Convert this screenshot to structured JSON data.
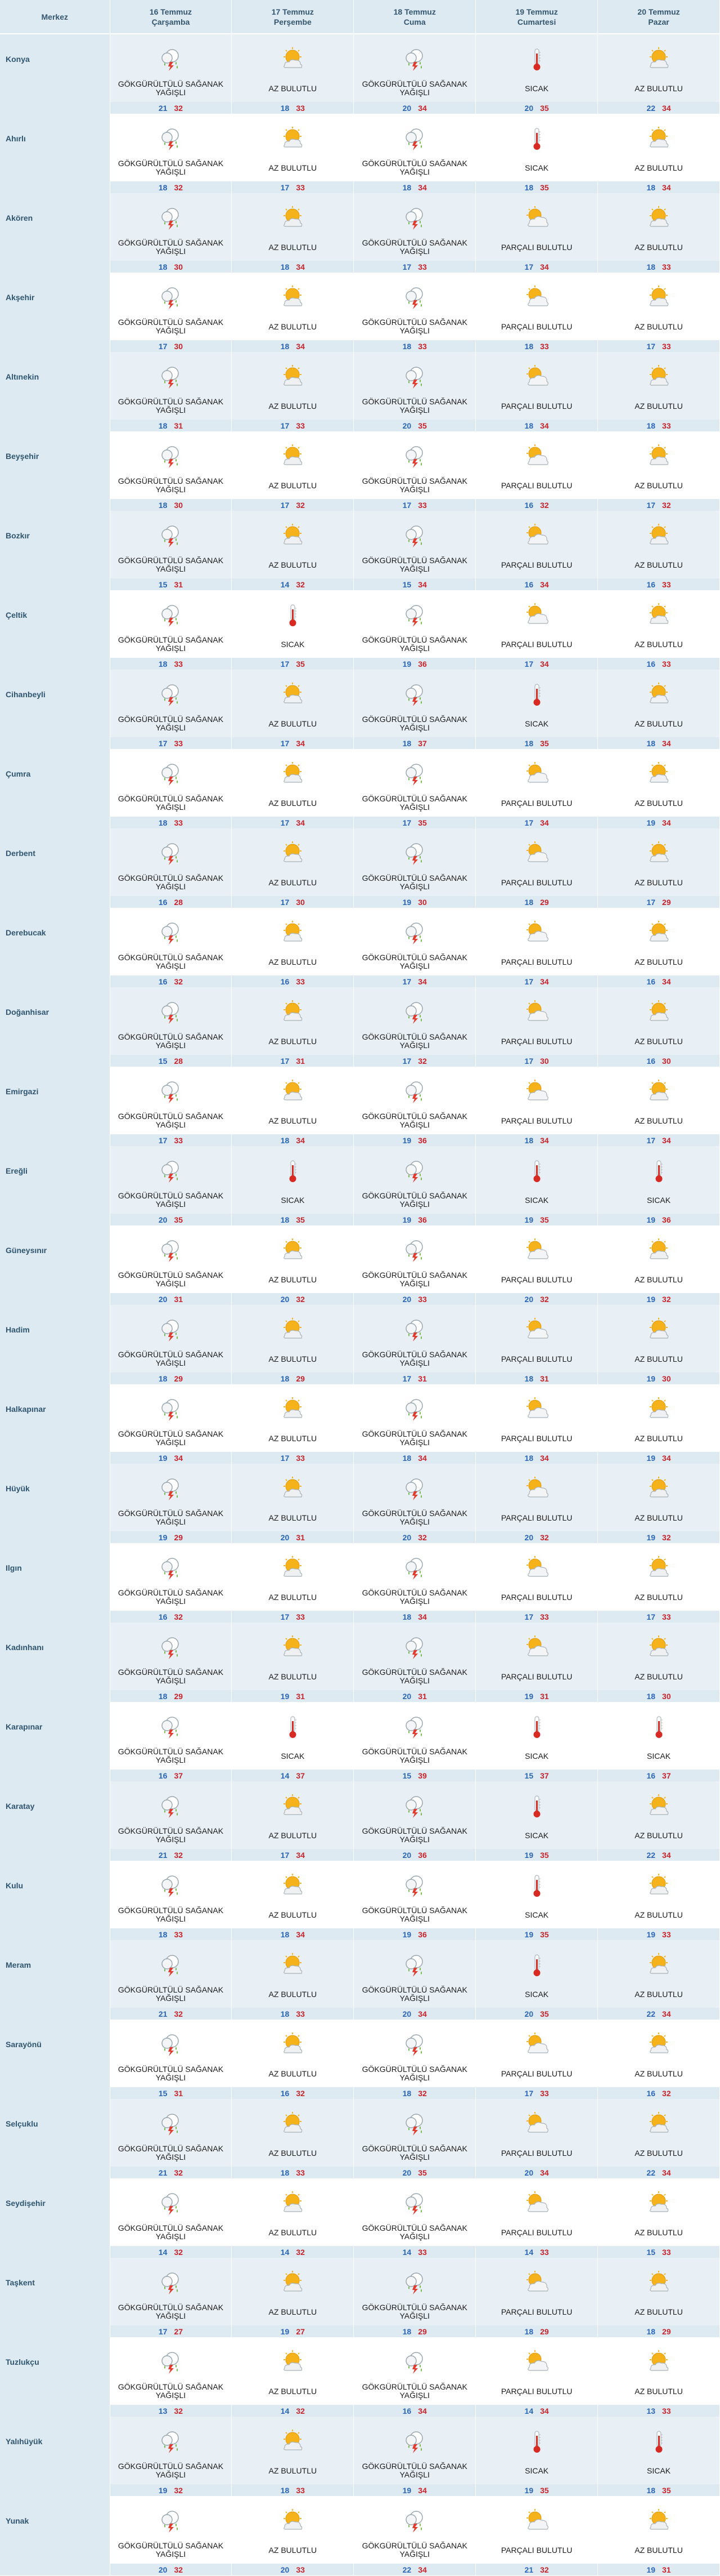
{
  "header": {
    "city_label": "Merkez",
    "days": [
      {
        "date": "16 Temmuz",
        "day": "Çarşamba"
      },
      {
        "date": "17 Temmuz",
        "day": "Perşembe"
      },
      {
        "date": "18 Temmuz",
        "day": "Cuma"
      },
      {
        "date": "19 Temmuz",
        "day": "Cumartesi"
      },
      {
        "date": "20 Temmuz",
        "day": "Pazar"
      }
    ]
  },
  "conditions": {
    "storm": "GÖKGÜRÜLTÜLÜ SAĞANAK YAĞIŞLI",
    "partly": "AZ BULUTLU",
    "mostly": "PARÇALI BULUTLU",
    "hot": "SICAK"
  },
  "icons": {
    "storm": "thunderstorm-icon",
    "partly": "partly-cloudy-icon",
    "mostly": "mostly-cloudy-icon",
    "hot": "thermometer-icon"
  },
  "colors": {
    "header_bg": "#ddeaf2",
    "city_text": "#2f5570",
    "min_temp": "#2a66b8",
    "max_temp": "#c8232a",
    "alt_row": "#e9f0f5"
  },
  "rows": [
    {
      "city": "Konya",
      "days": [
        [
          "storm",
          21,
          32
        ],
        [
          "partly",
          18,
          33
        ],
        [
          "storm",
          20,
          34
        ],
        [
          "hot",
          20,
          35
        ],
        [
          "partly",
          22,
          34
        ]
      ]
    },
    {
      "city": "Ahırlı",
      "days": [
        [
          "storm",
          18,
          32
        ],
        [
          "partly",
          17,
          33
        ],
        [
          "storm",
          18,
          34
        ],
        [
          "hot",
          18,
          35
        ],
        [
          "partly",
          18,
          34
        ]
      ]
    },
    {
      "city": "Akören",
      "days": [
        [
          "storm",
          18,
          30
        ],
        [
          "partly",
          18,
          34
        ],
        [
          "storm",
          17,
          33
        ],
        [
          "mostly",
          17,
          34
        ],
        [
          "partly",
          18,
          33
        ]
      ]
    },
    {
      "city": "Akşehir",
      "days": [
        [
          "storm",
          17,
          30
        ],
        [
          "partly",
          18,
          34
        ],
        [
          "storm",
          18,
          33
        ],
        [
          "mostly",
          18,
          33
        ],
        [
          "partly",
          17,
          33
        ]
      ]
    },
    {
      "city": "Altınekin",
      "days": [
        [
          "storm",
          18,
          31
        ],
        [
          "partly",
          17,
          33
        ],
        [
          "storm",
          20,
          35
        ],
        [
          "mostly",
          18,
          34
        ],
        [
          "partly",
          18,
          33
        ]
      ]
    },
    {
      "city": "Beyşehir",
      "days": [
        [
          "storm",
          18,
          30
        ],
        [
          "partly",
          17,
          32
        ],
        [
          "storm",
          17,
          33
        ],
        [
          "mostly",
          16,
          32
        ],
        [
          "partly",
          17,
          32
        ]
      ]
    },
    {
      "city": "Bozkır",
      "days": [
        [
          "storm",
          15,
          31
        ],
        [
          "partly",
          14,
          32
        ],
        [
          "storm",
          15,
          34
        ],
        [
          "mostly",
          16,
          34
        ],
        [
          "partly",
          16,
          33
        ]
      ]
    },
    {
      "city": "Çeltik",
      "days": [
        [
          "storm",
          18,
          33
        ],
        [
          "hot",
          17,
          35
        ],
        [
          "storm",
          19,
          36
        ],
        [
          "mostly",
          17,
          34
        ],
        [
          "partly",
          16,
          33
        ]
      ]
    },
    {
      "city": "Cihanbeyli",
      "days": [
        [
          "storm",
          17,
          33
        ],
        [
          "partly",
          17,
          34
        ],
        [
          "storm",
          18,
          37
        ],
        [
          "hot",
          18,
          35
        ],
        [
          "partly",
          18,
          34
        ]
      ]
    },
    {
      "city": "Çumra",
      "days": [
        [
          "storm",
          18,
          33
        ],
        [
          "partly",
          17,
          34
        ],
        [
          "storm",
          17,
          35
        ],
        [
          "mostly",
          17,
          34
        ],
        [
          "partly",
          19,
          34
        ]
      ]
    },
    {
      "city": "Derbent",
      "days": [
        [
          "storm",
          16,
          28
        ],
        [
          "partly",
          17,
          30
        ],
        [
          "storm",
          19,
          30
        ],
        [
          "mostly",
          18,
          29
        ],
        [
          "partly",
          17,
          29
        ]
      ]
    },
    {
      "city": "Derebucak",
      "days": [
        [
          "storm",
          16,
          32
        ],
        [
          "partly",
          16,
          33
        ],
        [
          "storm",
          17,
          34
        ],
        [
          "mostly",
          17,
          34
        ],
        [
          "partly",
          16,
          34
        ]
      ]
    },
    {
      "city": "Doğanhisar",
      "days": [
        [
          "storm",
          15,
          28
        ],
        [
          "partly",
          17,
          31
        ],
        [
          "storm",
          17,
          32
        ],
        [
          "mostly",
          17,
          30
        ],
        [
          "partly",
          16,
          30
        ]
      ]
    },
    {
      "city": "Emirgazi",
      "days": [
        [
          "storm",
          17,
          33
        ],
        [
          "partly",
          18,
          34
        ],
        [
          "storm",
          19,
          36
        ],
        [
          "mostly",
          18,
          34
        ],
        [
          "partly",
          17,
          34
        ]
      ]
    },
    {
      "city": "Ereğli",
      "days": [
        [
          "storm",
          20,
          35
        ],
        [
          "hot",
          18,
          35
        ],
        [
          "storm",
          19,
          36
        ],
        [
          "hot",
          19,
          35
        ],
        [
          "hot",
          19,
          36
        ]
      ]
    },
    {
      "city": "Güneysınır",
      "days": [
        [
          "storm",
          20,
          31
        ],
        [
          "partly",
          20,
          32
        ],
        [
          "storm",
          20,
          33
        ],
        [
          "mostly",
          20,
          32
        ],
        [
          "partly",
          19,
          32
        ]
      ]
    },
    {
      "city": "Hadim",
      "days": [
        [
          "storm",
          18,
          29
        ],
        [
          "partly",
          18,
          29
        ],
        [
          "storm",
          17,
          31
        ],
        [
          "mostly",
          18,
          31
        ],
        [
          "partly",
          19,
          30
        ]
      ]
    },
    {
      "city": "Halkapınar",
      "days": [
        [
          "storm",
          19,
          34
        ],
        [
          "partly",
          17,
          33
        ],
        [
          "storm",
          18,
          34
        ],
        [
          "mostly",
          18,
          34
        ],
        [
          "partly",
          19,
          34
        ]
      ]
    },
    {
      "city": "Hüyük",
      "days": [
        [
          "storm",
          19,
          29
        ],
        [
          "partly",
          20,
          31
        ],
        [
          "storm",
          20,
          32
        ],
        [
          "mostly",
          20,
          32
        ],
        [
          "partly",
          19,
          32
        ]
      ]
    },
    {
      "city": "Ilgın",
      "days": [
        [
          "storm",
          16,
          32
        ],
        [
          "partly",
          17,
          33
        ],
        [
          "storm",
          18,
          34
        ],
        [
          "mostly",
          17,
          33
        ],
        [
          "partly",
          17,
          33
        ]
      ]
    },
    {
      "city": "Kadınhanı",
      "days": [
        [
          "storm",
          18,
          29
        ],
        [
          "partly",
          19,
          31
        ],
        [
          "storm",
          20,
          31
        ],
        [
          "mostly",
          19,
          31
        ],
        [
          "partly",
          18,
          30
        ]
      ]
    },
    {
      "city": "Karapınar",
      "days": [
        [
          "storm",
          16,
          37
        ],
        [
          "hot",
          14,
          37
        ],
        [
          "storm",
          15,
          39
        ],
        [
          "hot",
          15,
          37
        ],
        [
          "hot",
          16,
          37
        ]
      ]
    },
    {
      "city": "Karatay",
      "days": [
        [
          "storm",
          21,
          32
        ],
        [
          "partly",
          17,
          34
        ],
        [
          "storm",
          20,
          36
        ],
        [
          "hot",
          19,
          35
        ],
        [
          "partly",
          22,
          34
        ]
      ]
    },
    {
      "city": "Kulu",
      "days": [
        [
          "storm",
          18,
          33
        ],
        [
          "partly",
          18,
          34
        ],
        [
          "storm",
          19,
          36
        ],
        [
          "hot",
          19,
          35
        ],
        [
          "partly",
          19,
          33
        ]
      ]
    },
    {
      "city": "Meram",
      "days": [
        [
          "storm",
          21,
          32
        ],
        [
          "partly",
          18,
          33
        ],
        [
          "storm",
          20,
          34
        ],
        [
          "hot",
          20,
          35
        ],
        [
          "partly",
          22,
          34
        ]
      ]
    },
    {
      "city": "Sarayönü",
      "days": [
        [
          "storm",
          15,
          31
        ],
        [
          "partly",
          16,
          32
        ],
        [
          "storm",
          18,
          32
        ],
        [
          "mostly",
          17,
          33
        ],
        [
          "partly",
          16,
          32
        ]
      ]
    },
    {
      "city": "Selçuklu",
      "days": [
        [
          "storm",
          21,
          32
        ],
        [
          "partly",
          18,
          33
        ],
        [
          "storm",
          20,
          35
        ],
        [
          "mostly",
          20,
          34
        ],
        [
          "partly",
          22,
          34
        ]
      ]
    },
    {
      "city": "Seydişehir",
      "days": [
        [
          "storm",
          14,
          32
        ],
        [
          "partly",
          14,
          32
        ],
        [
          "storm",
          14,
          33
        ],
        [
          "mostly",
          14,
          33
        ],
        [
          "partly",
          15,
          33
        ]
      ]
    },
    {
      "city": "Taşkent",
      "days": [
        [
          "storm",
          17,
          27
        ],
        [
          "partly",
          19,
          27
        ],
        [
          "storm",
          18,
          29
        ],
        [
          "mostly",
          18,
          29
        ],
        [
          "partly",
          18,
          29
        ]
      ]
    },
    {
      "city": "Tuzlukçu",
      "days": [
        [
          "storm",
          13,
          32
        ],
        [
          "partly",
          14,
          32
        ],
        [
          "storm",
          16,
          34
        ],
        [
          "mostly",
          14,
          34
        ],
        [
          "partly",
          13,
          33
        ]
      ]
    },
    {
      "city": "Yalıhüyük",
      "days": [
        [
          "storm",
          19,
          32
        ],
        [
          "partly",
          18,
          33
        ],
        [
          "storm",
          19,
          34
        ],
        [
          "hot",
          19,
          35
        ],
        [
          "hot",
          18,
          35
        ]
      ]
    },
    {
      "city": "Yunak",
      "days": [
        [
          "storm",
          20,
          32
        ],
        [
          "partly",
          20,
          33
        ],
        [
          "storm",
          22,
          34
        ],
        [
          "mostly",
          21,
          32
        ],
        [
          "partly",
          19,
          31
        ]
      ]
    }
  ]
}
